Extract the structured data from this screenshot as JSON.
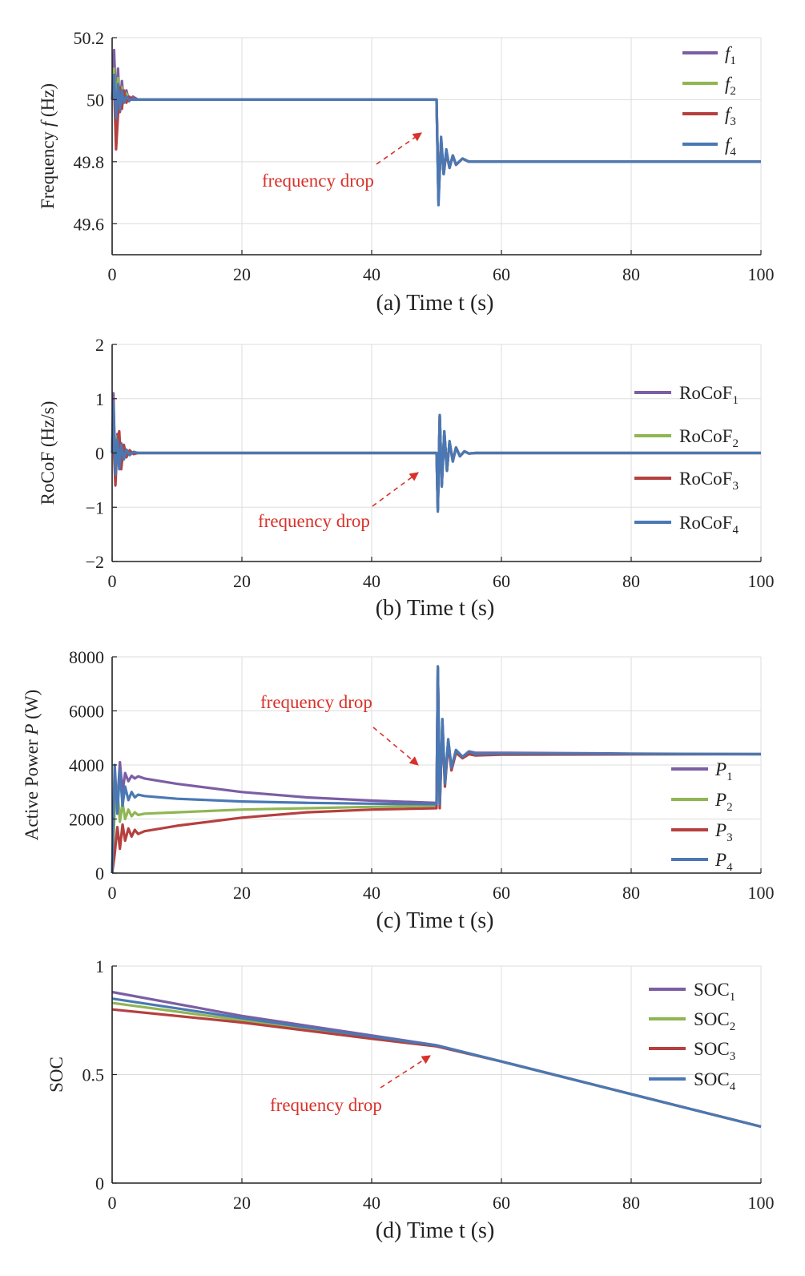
{
  "colors": {
    "s1": "#7b5ea3",
    "s2": "#8fb653",
    "s3": "#b5403f",
    "s4": "#4a78b4",
    "annotation": "#d8322a",
    "grid": "#dddddd"
  },
  "chart_data": [
    {
      "type": "line",
      "panel": "a",
      "xlabel": "(a) Time t (s)",
      "ylabel": "Frequency f (Hz)",
      "xlim": [
        0,
        100
      ],
      "ylim": [
        49.5,
        50.2
      ],
      "xticks": [
        0,
        20,
        40,
        60,
        80,
        100
      ],
      "yticks": [
        49.6,
        49.8,
        50,
        50.2
      ],
      "ytick_labels": [
        "49.6",
        "49.8",
        "50",
        "50.2"
      ],
      "grid": true,
      "legend_position": "top-right",
      "annotation": "frequency drop",
      "series": [
        {
          "name": "f1",
          "x": [
            0,
            0.3,
            0.6,
            0.9,
            1.2,
            1.5,
            1.8,
            2.2,
            2.6,
            3.2,
            4,
            50,
            50.3,
            50.7,
            51.1,
            51.5,
            52,
            52.5,
            53,
            54,
            55,
            56,
            100
          ],
          "y": [
            50.0,
            50.16,
            49.98,
            50.1,
            49.96,
            50.06,
            49.99,
            50.03,
            49.995,
            50.01,
            50.0,
            50.0,
            49.68,
            49.87,
            49.76,
            49.83,
            49.78,
            49.82,
            49.79,
            49.81,
            49.8,
            49.8,
            49.8
          ]
        },
        {
          "name": "f2",
          "x": [
            0,
            0.3,
            0.6,
            0.9,
            1.2,
            1.5,
            1.8,
            2.2,
            2.6,
            3.2,
            4,
            50,
            50.3,
            50.7,
            51.1,
            51.5,
            52,
            52.5,
            53,
            54,
            55,
            56,
            100
          ],
          "y": [
            50.0,
            50.1,
            49.97,
            50.07,
            49.97,
            50.04,
            49.99,
            50.02,
            50.0,
            50.0,
            50.0,
            50.0,
            49.68,
            49.87,
            49.76,
            49.83,
            49.78,
            49.82,
            49.79,
            49.81,
            49.8,
            49.8,
            49.8
          ]
        },
        {
          "name": "f3",
          "x": [
            0,
            0.3,
            0.6,
            0.9,
            1.2,
            1.5,
            1.8,
            2.2,
            2.6,
            3.2,
            4,
            50,
            50.3,
            50.7,
            51.1,
            51.5,
            52,
            52.5,
            53,
            54,
            55,
            56,
            100
          ],
          "y": [
            50.0,
            50.05,
            49.84,
            49.95,
            50.04,
            49.97,
            50.03,
            49.99,
            50.01,
            50.0,
            50.0,
            50.0,
            49.68,
            49.87,
            49.76,
            49.83,
            49.78,
            49.82,
            49.79,
            49.81,
            49.8,
            49.8,
            49.8
          ]
        },
        {
          "name": "f4",
          "x": [
            0,
            0.3,
            0.6,
            0.9,
            1.2,
            1.5,
            1.8,
            2.2,
            2.6,
            3.2,
            4,
            50,
            50.3,
            50.7,
            51.1,
            51.5,
            52,
            52.5,
            53,
            54,
            55,
            56,
            100
          ],
          "y": [
            50.0,
            50.08,
            49.94,
            50.05,
            49.97,
            50.03,
            49.99,
            50.01,
            50.0,
            50.0,
            50.0,
            50.0,
            49.66,
            49.88,
            49.76,
            49.84,
            49.78,
            49.82,
            49.79,
            49.81,
            49.8,
            49.8,
            49.8
          ]
        }
      ]
    },
    {
      "type": "line",
      "panel": "b",
      "xlabel": "(b) Time t (s)",
      "ylabel": "RoCoF (Hz/s)",
      "xlim": [
        0,
        100
      ],
      "ylim": [
        -2,
        2
      ],
      "xticks": [
        0,
        20,
        40,
        60,
        80,
        100
      ],
      "yticks": [
        -2,
        -1,
        0,
        1,
        2
      ],
      "ytick_labels": [
        "−2",
        "−1",
        "0",
        "1",
        "2"
      ],
      "grid": true,
      "legend_position": "right",
      "annotation": "frequency drop",
      "series": [
        {
          "name": "RoCoF1",
          "x": [
            0,
            0.2,
            0.5,
            0.8,
            1.1,
            1.4,
            1.8,
            2.2,
            2.7,
            3.3,
            4,
            5,
            50,
            50.2,
            50.5,
            50.8,
            51.2,
            51.6,
            52,
            52.5,
            53,
            53.6,
            54.3,
            55,
            56,
            100
          ],
          "y": [
            0,
            1.1,
            -0.5,
            0.35,
            -0.25,
            0.18,
            -0.1,
            0.06,
            -0.03,
            0.01,
            0,
            0,
            0,
            -1.05,
            0.68,
            -0.6,
            0.38,
            -0.32,
            0.2,
            -0.15,
            0.1,
            -0.06,
            0.03,
            -0.01,
            0,
            0
          ]
        },
        {
          "name": "RoCoF2",
          "x": [
            0,
            0.2,
            0.5,
            0.8,
            1.1,
            1.4,
            1.8,
            2.2,
            2.7,
            3.3,
            4,
            5,
            50,
            50.2,
            50.5,
            50.8,
            51.2,
            51.6,
            52,
            52.5,
            53,
            53.6,
            54.3,
            55,
            56,
            100
          ],
          "y": [
            0,
            0.8,
            -0.45,
            0.3,
            -0.2,
            0.14,
            -0.08,
            0.05,
            -0.02,
            0.01,
            0,
            0,
            0,
            -1.05,
            0.68,
            -0.6,
            0.38,
            -0.32,
            0.2,
            -0.15,
            0.1,
            -0.06,
            0.03,
            -0.01,
            0,
            0
          ]
        },
        {
          "name": "RoCoF3",
          "x": [
            0,
            0.2,
            0.5,
            0.8,
            1.1,
            1.4,
            1.8,
            2.2,
            2.7,
            3.3,
            4,
            5,
            50,
            50.2,
            50.5,
            50.8,
            51.2,
            51.6,
            52,
            52.5,
            53,
            53.6,
            54.3,
            55,
            56,
            100
          ],
          "y": [
            0,
            0.3,
            -0.6,
            0.2,
            0.4,
            -0.3,
            0.15,
            -0.08,
            0.05,
            -0.02,
            0,
            0,
            0,
            -1.05,
            0.68,
            -0.6,
            0.38,
            -0.32,
            0.2,
            -0.15,
            0.1,
            -0.06,
            0.03,
            -0.01,
            0,
            0
          ]
        },
        {
          "name": "RoCoF4",
          "x": [
            0,
            0.2,
            0.5,
            0.8,
            1.1,
            1.4,
            1.8,
            2.2,
            2.7,
            3.3,
            4,
            5,
            50,
            50.2,
            50.5,
            50.8,
            51.2,
            51.6,
            52,
            52.5,
            53,
            53.6,
            54.3,
            55,
            56,
            100
          ],
          "y": [
            0,
            0.9,
            -0.4,
            0.25,
            -0.3,
            0.15,
            -0.12,
            0.06,
            -0.04,
            0.02,
            0,
            0,
            0,
            -1.08,
            0.7,
            -0.62,
            0.4,
            -0.33,
            0.22,
            -0.16,
            0.1,
            -0.06,
            0.03,
            -0.01,
            0,
            0
          ]
        }
      ]
    },
    {
      "type": "line",
      "panel": "c",
      "xlabel": "(c) Time t (s)",
      "ylabel": "Active Power P (W)",
      "xlim": [
        0,
        100
      ],
      "ylim": [
        0,
        8000
      ],
      "xticks": [
        0,
        20,
        40,
        60,
        80,
        100
      ],
      "yticks": [
        0,
        2000,
        4000,
        6000,
        8000
      ],
      "ytick_labels": [
        "0",
        "2000",
        "4000",
        "6000",
        "8000"
      ],
      "grid": true,
      "legend_position": "bottom-right",
      "annotation": "frequency drop",
      "series": [
        {
          "name": "P1",
          "x": [
            0,
            0.4,
            0.8,
            1.2,
            1.6,
            2,
            2.5,
            3,
            3.5,
            4,
            5,
            10,
            20,
            30,
            40,
            50,
            50.2,
            50.5,
            50.9,
            51.3,
            51.8,
            52.3,
            53,
            54,
            55,
            56,
            60,
            80,
            100
          ],
          "y": [
            0,
            3200,
            2600,
            4100,
            3000,
            3700,
            3400,
            3600,
            3500,
            3580,
            3500,
            3300,
            3000,
            2800,
            2680,
            2600,
            7600,
            2600,
            5600,
            3300,
            4900,
            3900,
            4550,
            4300,
            4500,
            4450,
            4450,
            4420,
            4400
          ]
        },
        {
          "name": "P2",
          "x": [
            0,
            0.4,
            0.8,
            1.2,
            1.6,
            2,
            2.5,
            3,
            3.5,
            4,
            5,
            10,
            20,
            30,
            40,
            50,
            50.2,
            50.5,
            50.9,
            51.3,
            51.8,
            52.3,
            53,
            54,
            55,
            56,
            60,
            80,
            100
          ],
          "y": [
            0,
            2400,
            3100,
            1900,
            2600,
            2000,
            2350,
            2100,
            2250,
            2150,
            2200,
            2250,
            2350,
            2400,
            2450,
            2500,
            7600,
            2500,
            5600,
            3300,
            4900,
            3900,
            4550,
            4300,
            4500,
            4400,
            4420,
            4410,
            4400
          ]
        },
        {
          "name": "P3",
          "x": [
            0,
            0.4,
            0.8,
            1.2,
            1.6,
            2,
            2.5,
            3,
            3.5,
            4,
            5,
            10,
            20,
            30,
            40,
            50,
            50.2,
            50.5,
            50.9,
            51.3,
            51.8,
            52.3,
            53,
            54,
            55,
            56,
            60,
            80,
            100
          ],
          "y": [
            0,
            700,
            1700,
            900,
            1800,
            1200,
            1650,
            1350,
            1600,
            1450,
            1550,
            1750,
            2050,
            2250,
            2350,
            2400,
            7600,
            2400,
            5500,
            3200,
            4800,
            3800,
            4450,
            4250,
            4400,
            4350,
            4380,
            4390,
            4400
          ]
        },
        {
          "name": "P4",
          "x": [
            0,
            0.4,
            0.8,
            1.2,
            1.6,
            2,
            2.5,
            3,
            3.5,
            4,
            5,
            10,
            20,
            30,
            40,
            50,
            50.2,
            50.5,
            50.9,
            51.3,
            51.8,
            52.3,
            53,
            54,
            55,
            56,
            60,
            80,
            100
          ],
          "y": [
            0,
            4000,
            2200,
            3800,
            2500,
            3200,
            2700,
            3000,
            2800,
            2900,
            2850,
            2750,
            2650,
            2600,
            2570,
            2550,
            7650,
            2550,
            5700,
            3300,
            4950,
            3900,
            4550,
            4300,
            4500,
            4400,
            4420,
            4410,
            4400
          ]
        }
      ]
    },
    {
      "type": "line",
      "panel": "d",
      "xlabel": "(d) Time t (s)",
      "ylabel": "SOC",
      "xlim": [
        0,
        100
      ],
      "ylim": [
        0,
        1
      ],
      "xticks": [
        0,
        20,
        40,
        60,
        80,
        100
      ],
      "yticks": [
        0,
        0.5,
        1
      ],
      "ytick_labels": [
        "0",
        "0.5",
        "1"
      ],
      "grid": true,
      "legend_position": "top-right",
      "annotation": "frequency drop",
      "series": [
        {
          "name": "SOC1",
          "x": [
            0,
            20,
            40,
            50,
            60,
            80,
            100
          ],
          "y": [
            0.88,
            0.77,
            0.68,
            0.635,
            0.56,
            0.41,
            0.26
          ]
        },
        {
          "name": "SOC2",
          "x": [
            0,
            20,
            40,
            50,
            60,
            80,
            100
          ],
          "y": [
            0.83,
            0.75,
            0.67,
            0.632,
            0.56,
            0.41,
            0.26
          ]
        },
        {
          "name": "SOC3",
          "x": [
            0,
            20,
            40,
            50,
            60,
            80,
            100
          ],
          "y": [
            0.8,
            0.74,
            0.665,
            0.63,
            0.56,
            0.41,
            0.26
          ]
        },
        {
          "name": "SOC4",
          "x": [
            0,
            20,
            40,
            50,
            60,
            80,
            100
          ],
          "y": [
            0.85,
            0.76,
            0.675,
            0.634,
            0.56,
            0.41,
            0.26
          ]
        }
      ]
    }
  ]
}
